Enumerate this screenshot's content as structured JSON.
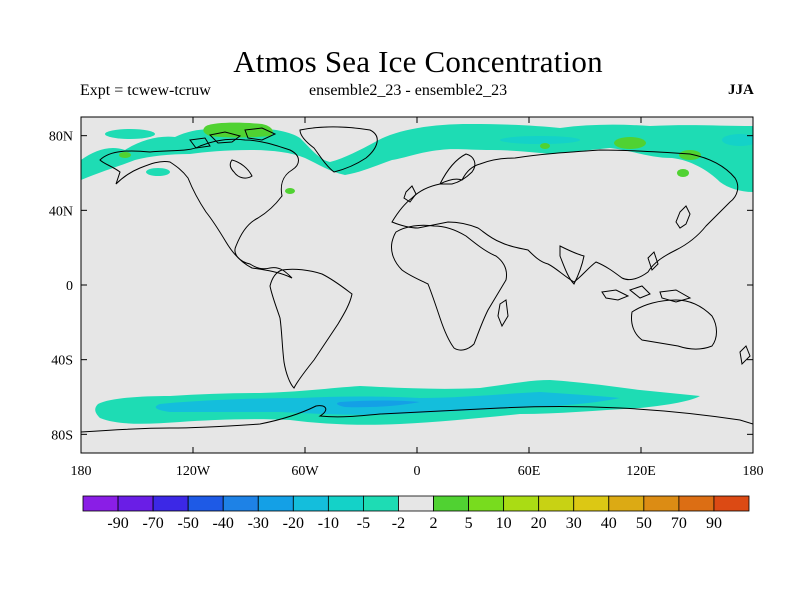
{
  "title": "Atmos Sea Ice Concentration",
  "experiment": "Expt = tcwew-tcruw",
  "difference": "ensemble2_23 - ensemble2_23",
  "season": "JJA",
  "map": {
    "lon_ticks": [
      {
        "lon": -180,
        "label": "180"
      },
      {
        "lon": -120,
        "label": "120W"
      },
      {
        "lon": -60,
        "label": "60W"
      },
      {
        "lon": 0,
        "label": "0"
      },
      {
        "lon": 60,
        "label": "60E"
      },
      {
        "lon": 120,
        "label": "120E"
      },
      {
        "lon": 180,
        "label": "180"
      }
    ],
    "lat_ticks": [
      {
        "lat": 80,
        "label": "80N"
      },
      {
        "lat": 40,
        "label": "40N"
      },
      {
        "lat": 0,
        "label": "0"
      },
      {
        "lat": -40,
        "label": "40S"
      },
      {
        "lat": -80,
        "label": "80S"
      }
    ],
    "lon_range": [
      -180,
      180
    ],
    "lat_range": [
      -90,
      90
    ],
    "ocean_color": "#e6e6e6",
    "coast_color": "#000000"
  },
  "colorbar": {
    "colors": [
      "#8a1ee6",
      "#6a1ee6",
      "#3c28e6",
      "#1e5ae6",
      "#1e82e6",
      "#14a0e6",
      "#14bedc",
      "#14d2c8",
      "#1edcb4",
      "#e6e6e6",
      "#50d232",
      "#78dc1e",
      "#aadc14",
      "#c8d214",
      "#dcc814",
      "#dcaa14",
      "#dc8c14",
      "#dc6e14",
      "#dc4a14"
    ],
    "labels": [
      "-90",
      "-70",
      "-50",
      "-40",
      "-30",
      "-20",
      "-10",
      "-5",
      "-2",
      "2",
      "5",
      "10",
      "20",
      "30",
      "40",
      "50",
      "70",
      "90"
    ]
  }
}
